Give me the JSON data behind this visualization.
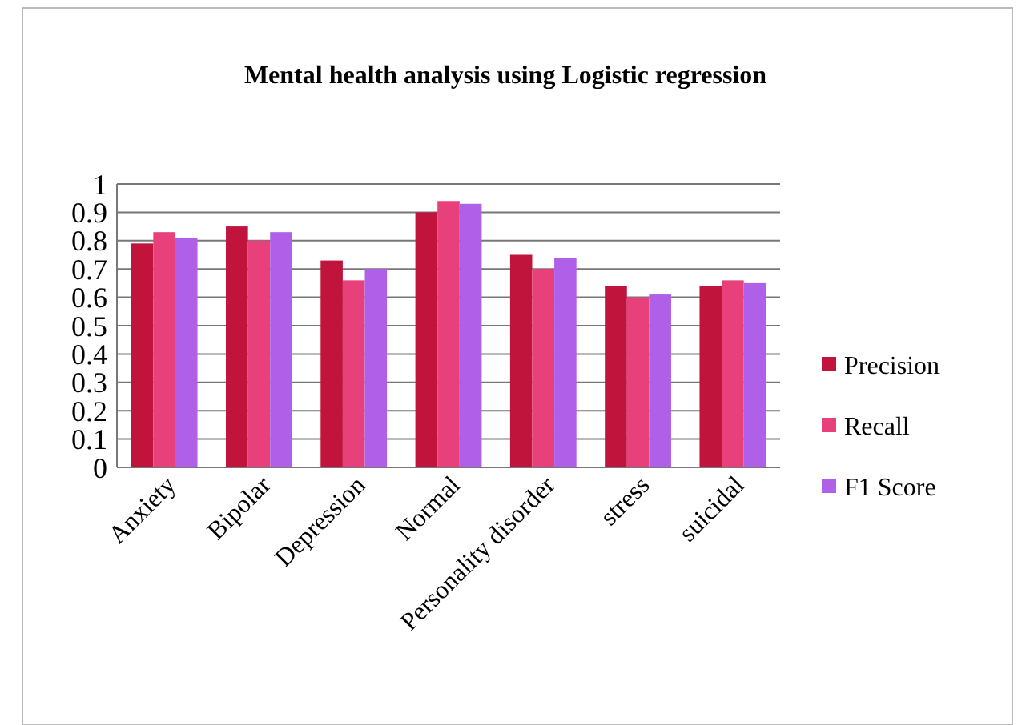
{
  "chart_data": {
    "type": "bar",
    "title": "Mental health analysis using Logistic regression",
    "categories": [
      "Anxiety",
      "Bipolar",
      "Depression",
      "Normal",
      "Personality disorder",
      "stress",
      "suicidal"
    ],
    "series": [
      {
        "name": "Precision",
        "color": "#c0143c",
        "values": [
          0.79,
          0.85,
          0.73,
          0.9,
          0.75,
          0.64,
          0.64
        ]
      },
      {
        "name": "Recall",
        "color": "#e8407a",
        "values": [
          0.83,
          0.8,
          0.66,
          0.94,
          0.7,
          0.6,
          0.66
        ]
      },
      {
        "name": "F1 Score",
        "color": "#b060e8",
        "values": [
          0.81,
          0.83,
          0.7,
          0.93,
          0.74,
          0.61,
          0.65
        ]
      }
    ],
    "ylim": [
      0,
      1
    ],
    "yticks": [
      0,
      0.1,
      0.2,
      0.3,
      0.4,
      0.5,
      0.6,
      0.7,
      0.8,
      0.9,
      1
    ],
    "grid": "y",
    "legend": "right"
  }
}
